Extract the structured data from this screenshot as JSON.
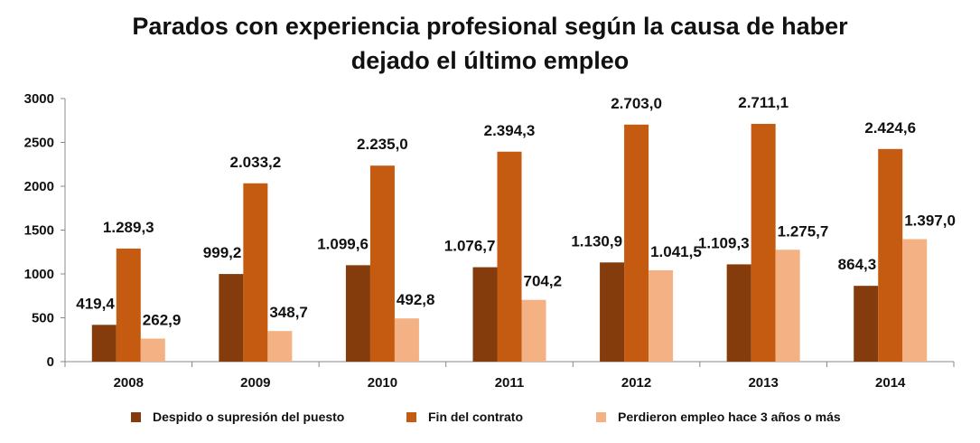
{
  "chart_data": {
    "type": "bar",
    "title_lines": [
      "Parados con experiencia profesional según la causa de haber",
      "dejado el último empleo"
    ],
    "xlabel": "",
    "ylabel": "",
    "ylim": [
      0,
      3000
    ],
    "y_ticks": [
      0,
      500,
      1000,
      1500,
      2000,
      2500,
      3000
    ],
    "grid": false,
    "legend_position": "bottom",
    "categories": [
      "2008",
      "2009",
      "2010",
      "2011",
      "2012",
      "2013",
      "2014"
    ],
    "series": [
      {
        "name": "Despido o supresión del puesto",
        "color": "#843C0C",
        "values": [
          419.4,
          999.2,
          1099.6,
          1076.7,
          1130.9,
          1109.3,
          864.3
        ],
        "labels": [
          "419,4",
          "999,2",
          "1.099,6",
          "1.076,7",
          "1.130,9",
          "1.109,3",
          "864,3"
        ]
      },
      {
        "name": "Fin del contrato",
        "color": "#C55A11",
        "values": [
          1289.3,
          2033.2,
          2235.0,
          2394.3,
          2703.0,
          2711.1,
          2424.6
        ],
        "labels": [
          "1.289,3",
          "2.033,2",
          "2.235,0",
          "2.394,3",
          "2.703,0",
          "2.711,1",
          "2.424,6"
        ]
      },
      {
        "name": "Perdieron empleo hace 3 años o más",
        "color": "#F4B183",
        "values": [
          262.9,
          348.7,
          492.8,
          704.2,
          1041.5,
          1275.7,
          1397.0
        ],
        "labels": [
          "262,9",
          "348,7",
          "492,8",
          "704,2",
          "1.041,5",
          "1.275,7",
          "1.397,0"
        ]
      }
    ]
  }
}
